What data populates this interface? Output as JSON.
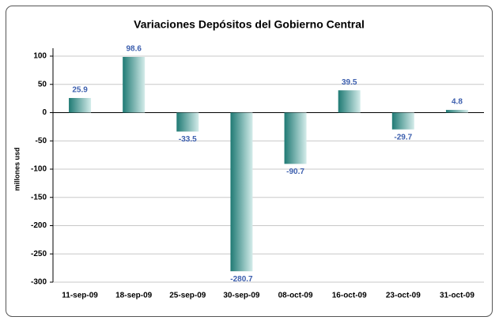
{
  "chart_data": {
    "type": "bar",
    "title": "Variaciones Depósitos del Gobierno Central",
    "y_label": "millones usd",
    "categories": [
      "11-sep-09",
      "18-sep-09",
      "25-sep-09",
      "30-sep-09",
      "08-oct-09",
      "16-oct-09",
      "23-oct-09",
      "31-oct-09"
    ],
    "values": [
      25.9,
      98.6,
      -33.5,
      -280.7,
      -90.7,
      39.5,
      -29.7,
      4.8
    ],
    "color": "#1f7a74",
    "label_color": "#3d5fae",
    "ylim": [
      -300,
      100
    ],
    "yticks": [
      -300,
      -250,
      -200,
      -150,
      -100,
      -50,
      0,
      50,
      100
    ],
    "grid": true
  }
}
